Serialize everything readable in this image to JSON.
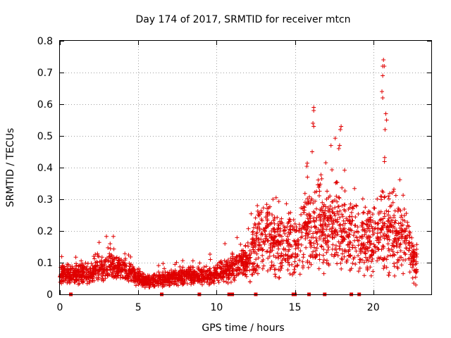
{
  "chart_data": {
    "type": "scatter",
    "title": "Day 174 of 2017, SRMTID for receiver mtcn",
    "xlabel": "GPS time / hours",
    "ylabel": "SRMTID / TECUs",
    "xlim": [
      0,
      23.7
    ],
    "ylim": [
      0,
      0.8
    ],
    "xticks": [
      0,
      5,
      10,
      15,
      20
    ],
    "yticks": [
      0,
      0.1,
      0.2,
      0.3,
      0.4,
      0.5,
      0.6,
      0.7,
      0.8
    ],
    "grid": true,
    "marker": "+",
    "color": "#e00000",
    "envelope": [
      {
        "x": 0.0,
        "y": 0.065
      },
      {
        "x": 2.0,
        "y": 0.06
      },
      {
        "x": 2.5,
        "y": 0.08
      },
      {
        "x": 3.5,
        "y": 0.09
      },
      {
        "x": 4.5,
        "y": 0.07
      },
      {
        "x": 5.5,
        "y": 0.04
      },
      {
        "x": 6.5,
        "y": 0.045
      },
      {
        "x": 8.0,
        "y": 0.06
      },
      {
        "x": 9.5,
        "y": 0.06
      },
      {
        "x": 11.0,
        "y": 0.08
      },
      {
        "x": 12.0,
        "y": 0.11
      },
      {
        "x": 12.8,
        "y": 0.19
      },
      {
        "x": 14.0,
        "y": 0.16
      },
      {
        "x": 15.0,
        "y": 0.14
      },
      {
        "x": 16.0,
        "y": 0.22
      },
      {
        "x": 17.0,
        "y": 0.2
      },
      {
        "x": 17.8,
        "y": 0.22
      },
      {
        "x": 18.5,
        "y": 0.18
      },
      {
        "x": 19.5,
        "y": 0.15
      },
      {
        "x": 20.5,
        "y": 0.2
      },
      {
        "x": 21.5,
        "y": 0.2
      },
      {
        "x": 22.0,
        "y": 0.17
      },
      {
        "x": 22.8,
        "y": 0.08
      }
    ],
    "highlights": [
      {
        "x": 16.2,
        "y": 0.59
      },
      {
        "x": 16.2,
        "y": 0.58
      },
      {
        "x": 16.15,
        "y": 0.54
      },
      {
        "x": 16.2,
        "y": 0.53
      },
      {
        "x": 16.1,
        "y": 0.45
      },
      {
        "x": 17.95,
        "y": 0.53
      },
      {
        "x": 17.9,
        "y": 0.52
      },
      {
        "x": 17.85,
        "y": 0.47
      },
      {
        "x": 17.8,
        "y": 0.46
      },
      {
        "x": 20.65,
        "y": 0.74
      },
      {
        "x": 20.6,
        "y": 0.72
      },
      {
        "x": 20.7,
        "y": 0.72
      },
      {
        "x": 20.6,
        "y": 0.69
      },
      {
        "x": 20.55,
        "y": 0.64
      },
      {
        "x": 20.6,
        "y": 0.62
      },
      {
        "x": 20.8,
        "y": 0.57
      },
      {
        "x": 20.85,
        "y": 0.55
      },
      {
        "x": 20.75,
        "y": 0.52
      },
      {
        "x": 13.6,
        "y": 0.3
      },
      {
        "x": 12.6,
        "y": 0.28
      },
      {
        "x": 15.8,
        "y": 0.37
      },
      {
        "x": 18.7,
        "y": 0.27
      }
    ],
    "gaps_x": [
      0.7,
      6.5,
      8.9,
      10.8,
      11.0,
      12.5,
      14.9,
      15.0,
      15.9,
      16.9,
      18.6,
      19.1
    ]
  }
}
